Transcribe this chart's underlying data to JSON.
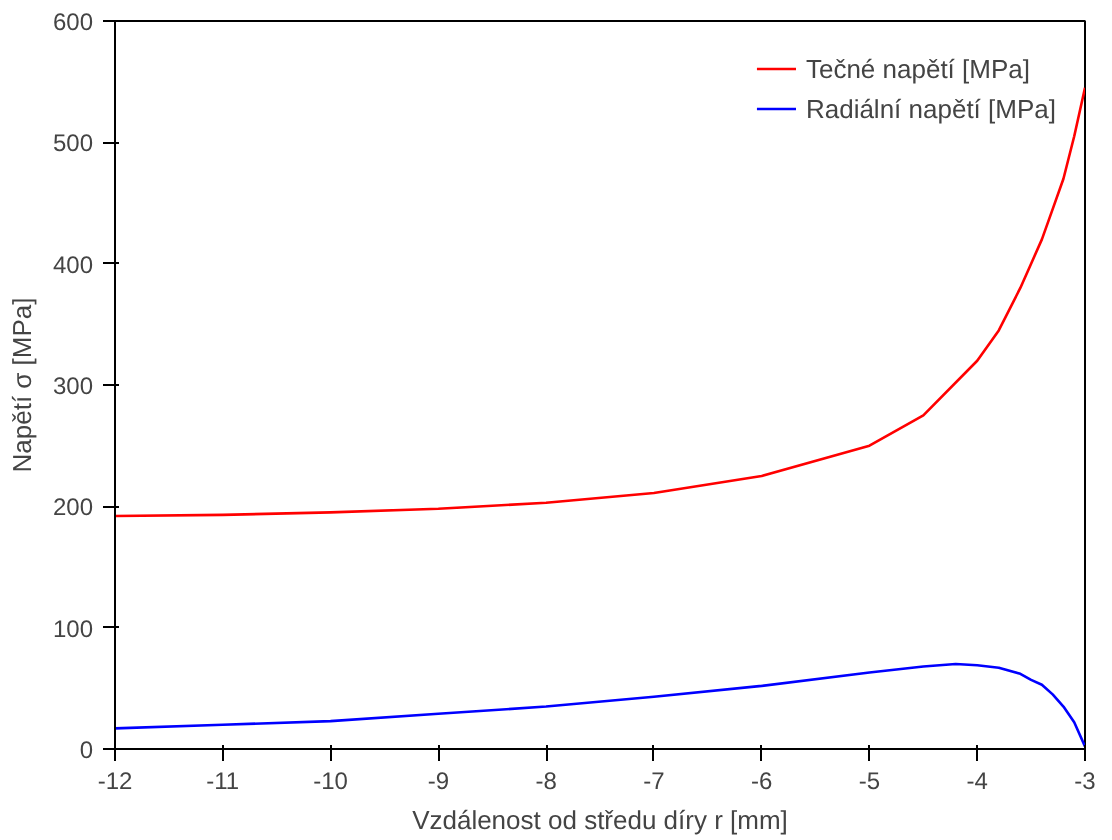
{
  "chart_data": {
    "type": "line",
    "xlabel": "Vzdálenost od středu díry r [mm]",
    "ylabel": "Napětí σ [MPa]",
    "xlim": [
      -12,
      -3
    ],
    "ylim": [
      0,
      600
    ],
    "xticks": [
      -12,
      -11,
      -10,
      -9,
      -8,
      -7,
      -6,
      -5,
      -4,
      -3
    ],
    "yticks": [
      0,
      100,
      200,
      300,
      400,
      500,
      600
    ],
    "grid": false,
    "legend": "top right",
    "line_style": "solid",
    "marker": "none",
    "series": [
      {
        "name": "Tečné napětí [MPa]",
        "color": "#ff0000",
        "x": [
          -12,
          -11,
          -10,
          -9,
          -8,
          -7,
          -6,
          -5,
          -4.5,
          -4,
          -3.8,
          -3.6,
          -3.5,
          -3.4,
          -3.3,
          -3.2,
          -3.1,
          -3
        ],
        "values": [
          192,
          193,
          195,
          198,
          203,
          211,
          225,
          250,
          275,
          320,
          345,
          380,
          400,
          420,
          445,
          470,
          505,
          545
        ]
      },
      {
        "name": "Radiální napětí [MPa]",
        "color": "#0000ff",
        "x": [
          -12,
          -11,
          -10,
          -9,
          -8,
          -7,
          -6,
          -5,
          -4.5,
          -4.2,
          -4,
          -3.8,
          -3.6,
          -3.5,
          -3.4,
          -3.3,
          -3.2,
          -3.1,
          -3
        ],
        "values": [
          17,
          20,
          23,
          29,
          35,
          43,
          52,
          63,
          68,
          70,
          69,
          67,
          62,
          57,
          53,
          45,
          35,
          22,
          2
        ]
      }
    ]
  }
}
